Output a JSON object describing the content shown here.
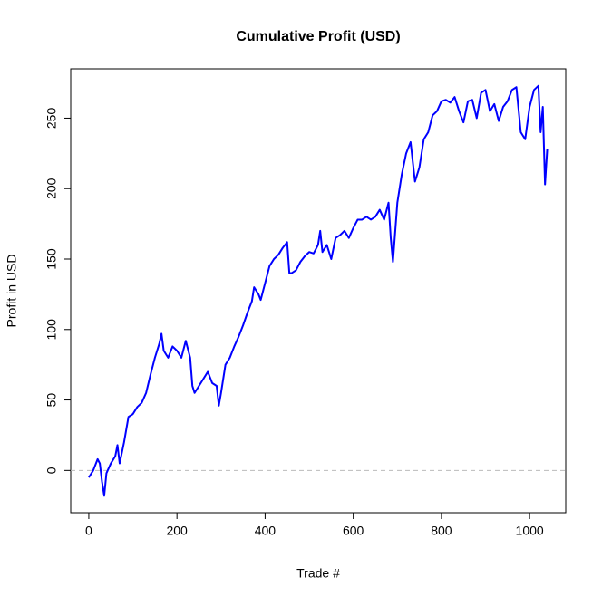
{
  "chart_data": {
    "type": "line",
    "title": "Cumulative Profit (USD)",
    "x_label": "Trade #",
    "y_label": "Profit in USD",
    "x": [
      0,
      10,
      20,
      25,
      30,
      35,
      40,
      50,
      60,
      65,
      70,
      80,
      90,
      100,
      110,
      120,
      130,
      140,
      150,
      160,
      165,
      170,
      180,
      190,
      200,
      210,
      220,
      230,
      235,
      240,
      250,
      260,
      270,
      280,
      290,
      295,
      300,
      310,
      320,
      330,
      340,
      350,
      360,
      370,
      375,
      385,
      390,
      400,
      410,
      420,
      430,
      440,
      450,
      455,
      460,
      470,
      480,
      490,
      500,
      510,
      520,
      525,
      530,
      540,
      550,
      560,
      570,
      580,
      590,
      600,
      610,
      620,
      630,
      640,
      650,
      660,
      670,
      680,
      685,
      690,
      700,
      710,
      720,
      730,
      740,
      750,
      760,
      770,
      780,
      790,
      800,
      810,
      820,
      830,
      840,
      850,
      860,
      870,
      880,
      890,
      900,
      910,
      920,
      930,
      940,
      950,
      960,
      970,
      980,
      990,
      1000,
      1010,
      1020,
      1025,
      1030,
      1035,
      1040
    ],
    "series": [
      {
        "name": "Cumulative Profit",
        "color": "#0000ff",
        "values": [
          -5,
          0,
          8,
          5,
          -8,
          -18,
          -2,
          5,
          10,
          18,
          5,
          20,
          38,
          40,
          45,
          48,
          55,
          68,
          80,
          90,
          97,
          85,
          80,
          88,
          85,
          80,
          92,
          80,
          60,
          55,
          60,
          65,
          70,
          62,
          60,
          46,
          55,
          75,
          80,
          88,
          95,
          103,
          112,
          120,
          130,
          125,
          121,
          133,
          145,
          150,
          153,
          158,
          162,
          140,
          140,
          142,
          148,
          152,
          155,
          154,
          160,
          170,
          155,
          160,
          150,
          165,
          167,
          170,
          165,
          172,
          178,
          178,
          180,
          178,
          180,
          185,
          178,
          190,
          165,
          148,
          190,
          210,
          225,
          233,
          205,
          215,
          235,
          240,
          252,
          255,
          262,
          263,
          261,
          265,
          255,
          247,
          262,
          263,
          250,
          268,
          270,
          255,
          260,
          248,
          258,
          262,
          270,
          272,
          240,
          235,
          258,
          270,
          273,
          240,
          258,
          203,
          228
        ]
      }
    ],
    "xlim": [
      -41,
      1082
    ],
    "ylim": [
      -30,
      285
    ],
    "xticks": [
      0,
      200,
      400,
      600,
      800,
      1000
    ],
    "yticks": [
      0,
      50,
      100,
      150,
      200,
      250
    ],
    "hline": 0
  }
}
